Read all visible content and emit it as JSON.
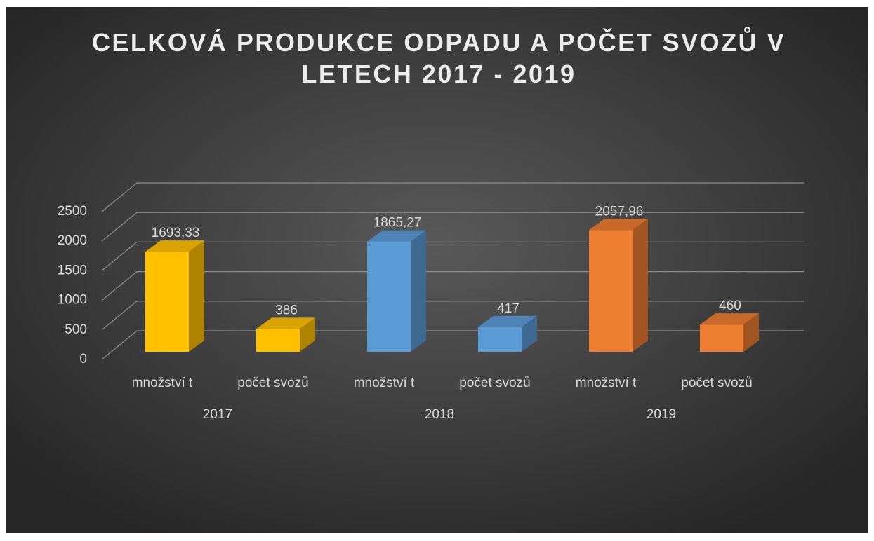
{
  "chart_data": {
    "type": "bar3d",
    "title": "CELKOVÁ PRODUKCE ODPADU A POČET SVOZŮ V LETECH 2017 - 2019",
    "categories": [
      "množství t",
      "počet svozů",
      "množství t",
      "počet svozů",
      "množství t",
      "počet svozů"
    ],
    "groups": [
      "2017",
      "2018",
      "2019"
    ],
    "values": [
      1693.33,
      386,
      1865.27,
      417,
      2057.96,
      460
    ],
    "value_labels": [
      "1693,33",
      "386",
      "1865,27",
      "417",
      "2057,96",
      "460"
    ],
    "colors": [
      "#ffc000",
      "#5b9bd5",
      "#ed7d31"
    ],
    "ylim": [
      0,
      2500
    ],
    "yticks": [
      0,
      500,
      1000,
      1500,
      2000,
      2500
    ],
    "grid": true
  }
}
